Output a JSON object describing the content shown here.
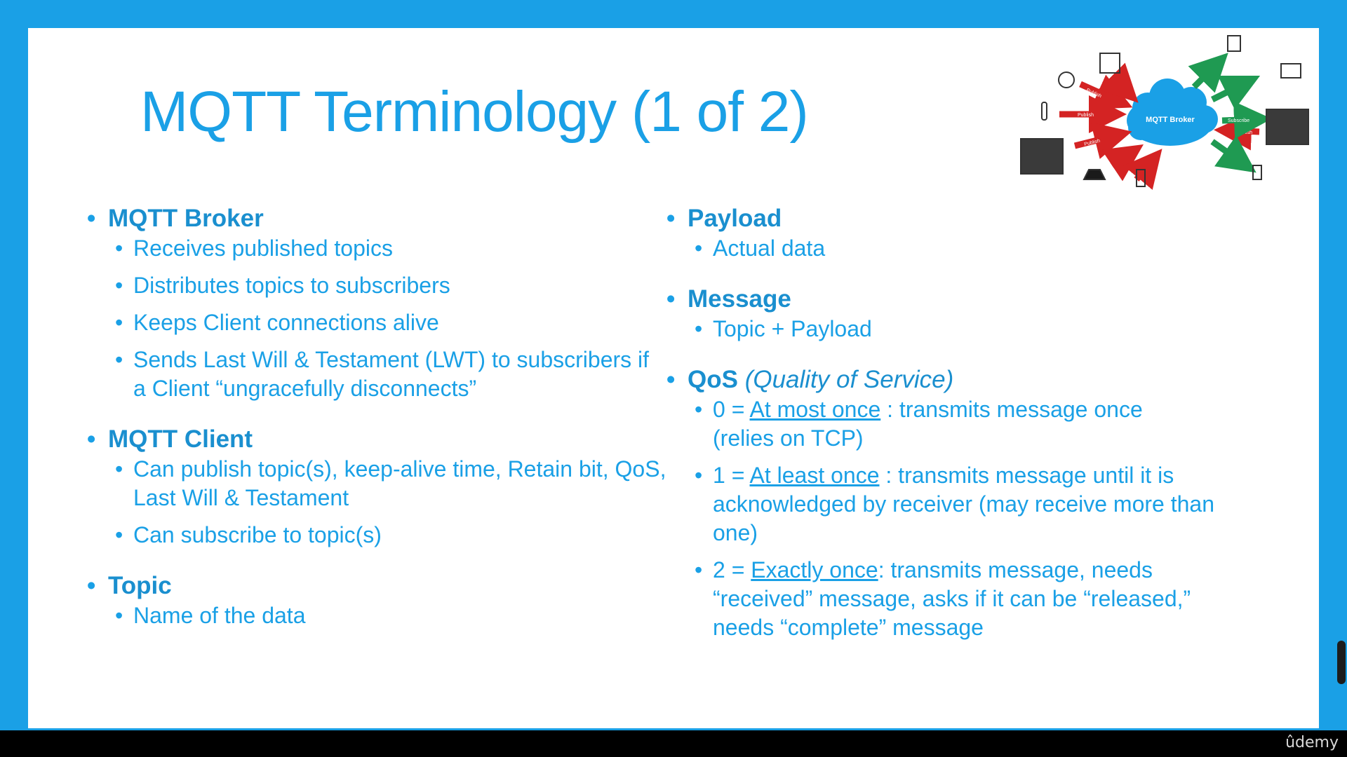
{
  "title": "MQTT Terminology (1 of 2)",
  "brand": "ûdemy",
  "left_sections": [
    {
      "heading": "MQTT Broker",
      "items": [
        "Receives published topics",
        "Distributes topics to subscribers",
        "Keeps Client connections alive",
        "Sends Last Will & Testament (LWT) to subscribers if a Client “ungracefully disconnects”"
      ]
    },
    {
      "heading": "MQTT Client",
      "items": [
        "Can publish topic(s), keep-alive time, Retain bit, QoS, Last Will & Testament",
        "Can subscribe to topic(s)"
      ]
    },
    {
      "heading": "Topic",
      "items": [
        "Name of the data"
      ]
    }
  ],
  "right_sections": {
    "payload": {
      "heading": "Payload",
      "items": [
        "Actual data"
      ]
    },
    "message": {
      "heading": "Message",
      "items": [
        "Topic + Payload"
      ]
    },
    "qos": {
      "heading": "QoS",
      "heading_note": "(Quality of Service)",
      "levels": [
        {
          "prefix": "0 = ",
          "term": "At most once",
          "description": " : transmits message once (relies on TCP)"
        },
        {
          "prefix": "1 = ",
          "term": "At least once",
          "description": " : transmits message until it is acknowledged by receiver (may receive more than one)"
        },
        {
          "prefix": "2 = ",
          "term": "Exactly once",
          "description": ": transmits message, needs “received” message, asks if it can be “released,” needs “complete” message"
        }
      ]
    }
  },
  "diagram": {
    "broker_label": "MQTT Broker",
    "publish_label": "Publish",
    "subscribe_label": "Subscribe",
    "publish_color": "#d42323",
    "subscribe_color": "#1f9a52",
    "cloud_color": "#1aa0e6"
  },
  "colors": {
    "frame": "#1aa0e6",
    "title": "#1aa0e6",
    "heading": "#1a8fcf",
    "text": "#1aa0e6"
  }
}
